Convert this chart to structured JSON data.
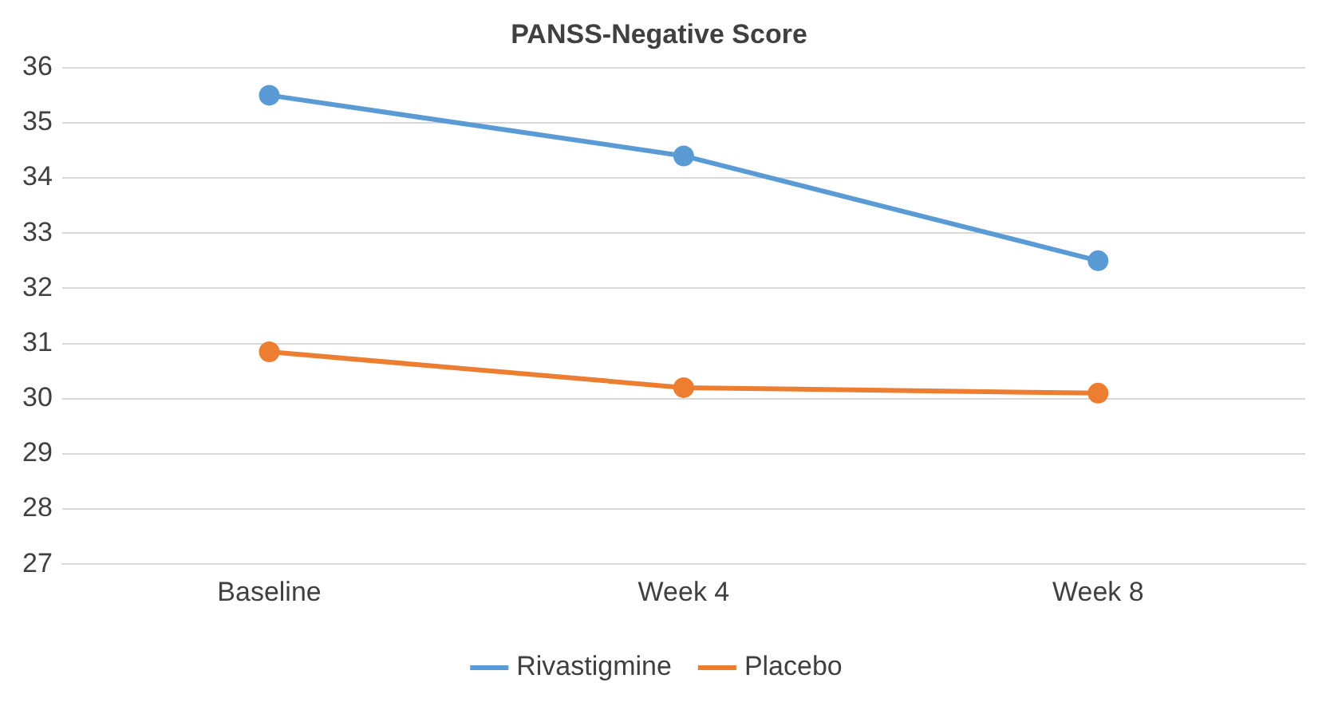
{
  "chart_data": {
    "type": "line",
    "title": "PANSS-Negative Score",
    "categories": [
      "Baseline",
      "Week 4",
      "Week 8"
    ],
    "series": [
      {
        "name": "Rivastigmine",
        "color": "#5b9bd5",
        "values": [
          35.5,
          34.4,
          32.5
        ]
      },
      {
        "name": "Placebo",
        "color": "#ed7d31",
        "values": [
          30.85,
          30.2,
          30.1
        ]
      }
    ],
    "ylim": [
      27,
      36
    ],
    "yticks": [
      27,
      28,
      29,
      30,
      31,
      32,
      33,
      34,
      35,
      36
    ],
    "grid": "y",
    "legend": "bottom",
    "marker": "circle",
    "line_style": "solid"
  }
}
